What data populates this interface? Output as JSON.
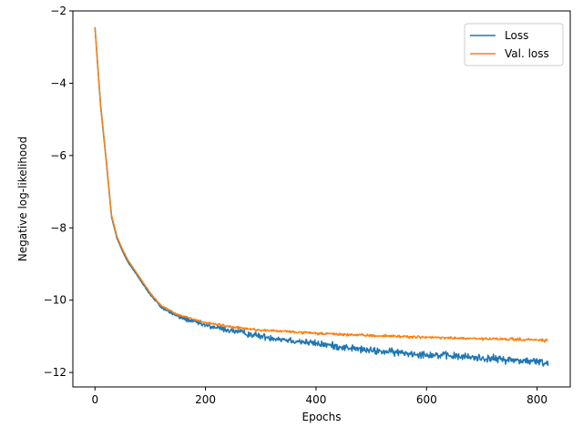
{
  "chart_data": {
    "type": "line",
    "title": "",
    "xlabel": "Epochs",
    "ylabel": "Negative log-likelihood",
    "xlim": [
      -40,
      860
    ],
    "ylim": [
      -12.4,
      -2.0
    ],
    "xticks": [
      0,
      200,
      400,
      600,
      800
    ],
    "yticks": [
      -12,
      -10,
      -8,
      -6,
      -4,
      -2
    ],
    "xtick_labels": [
      "0",
      "200",
      "400",
      "600",
      "800"
    ],
    "ytick_labels": [
      "−12",
      "−10",
      "−8",
      "−6",
      "−4",
      "−2"
    ],
    "grid": false,
    "legend_position": "top-right",
    "epochs": 820,
    "series": [
      {
        "name": "Loss",
        "color": "#1f77b4",
        "anchors": [
          [
            0,
            -2.45
          ],
          [
            10,
            -4.6
          ],
          [
            20,
            -6.1
          ],
          [
            30,
            -7.7
          ],
          [
            40,
            -8.3
          ],
          [
            50,
            -8.65
          ],
          [
            60,
            -8.95
          ],
          [
            80,
            -9.4
          ],
          [
            100,
            -9.85
          ],
          [
            120,
            -10.2
          ],
          [
            150,
            -10.45
          ],
          [
            200,
            -10.7
          ],
          [
            250,
            -10.85
          ],
          [
            300,
            -11.0
          ],
          [
            350,
            -11.1
          ],
          [
            400,
            -11.2
          ],
          [
            450,
            -11.3
          ],
          [
            500,
            -11.4
          ],
          [
            550,
            -11.45
          ],
          [
            600,
            -11.5
          ],
          [
            650,
            -11.55
          ],
          [
            700,
            -11.6
          ],
          [
            750,
            -11.65
          ],
          [
            800,
            -11.7
          ],
          [
            820,
            -11.75
          ]
        ],
        "noise": [
          [
            0,
            0.0
          ],
          [
            100,
            0.02
          ],
          [
            150,
            0.06
          ],
          [
            250,
            0.08
          ],
          [
            400,
            0.09
          ],
          [
            820,
            0.1
          ]
        ]
      },
      {
        "name": "Val. loss",
        "color": "#ff7f0e",
        "anchors": [
          [
            0,
            -2.45
          ],
          [
            10,
            -4.55
          ],
          [
            20,
            -6.05
          ],
          [
            30,
            -7.65
          ],
          [
            40,
            -8.25
          ],
          [
            50,
            -8.6
          ],
          [
            60,
            -8.9
          ],
          [
            80,
            -9.35
          ],
          [
            100,
            -9.8
          ],
          [
            120,
            -10.15
          ],
          [
            150,
            -10.4
          ],
          [
            200,
            -10.62
          ],
          [
            250,
            -10.75
          ],
          [
            300,
            -10.83
          ],
          [
            350,
            -10.87
          ],
          [
            400,
            -10.92
          ],
          [
            450,
            -10.95
          ],
          [
            500,
            -10.98
          ],
          [
            550,
            -11.0
          ],
          [
            600,
            -11.03
          ],
          [
            650,
            -11.05
          ],
          [
            700,
            -11.07
          ],
          [
            750,
            -11.08
          ],
          [
            800,
            -11.1
          ],
          [
            820,
            -11.12
          ]
        ],
        "noise": [
          [
            0,
            0.0
          ],
          [
            100,
            0.01
          ],
          [
            200,
            0.03
          ],
          [
            820,
            0.035
          ]
        ]
      }
    ]
  }
}
